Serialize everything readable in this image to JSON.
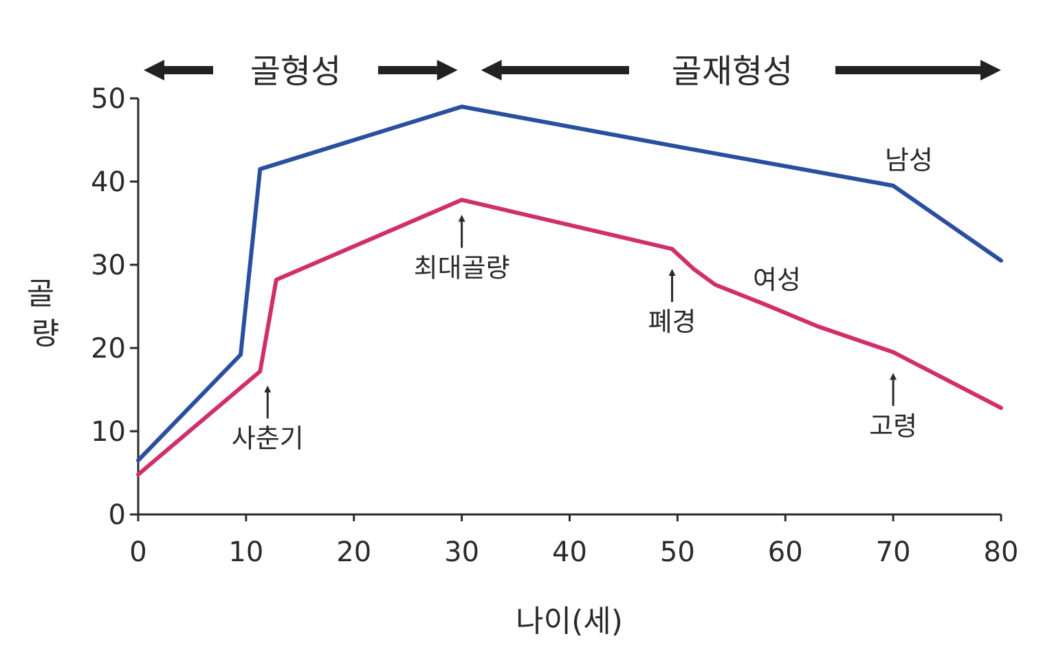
{
  "chart_data": {
    "type": "line",
    "xlabel": "나이(세)",
    "ylabel": "골량",
    "xlim": [
      0,
      80
    ],
    "ylim": [
      0,
      50
    ],
    "x_ticks": [
      "0",
      "10",
      "20",
      "30",
      "40",
      "50",
      "60",
      "70",
      "80"
    ],
    "y_ticks": [
      "0",
      "10",
      "20",
      "30",
      "40",
      "50"
    ],
    "grid": false,
    "series": [
      {
        "name": "남성",
        "color": "#2a4f9e",
        "points": [
          [
            0,
            6.5
          ],
          [
            9.5,
            19.2
          ],
          [
            11.3,
            41.5
          ],
          [
            30,
            49
          ],
          [
            50,
            44.2
          ],
          [
            70,
            39.5
          ],
          [
            80,
            30.5
          ]
        ]
      },
      {
        "name": "여성",
        "color": "#d0306a",
        "points": [
          [
            0,
            4.8
          ],
          [
            11.3,
            17.2
          ],
          [
            12.8,
            28.2
          ],
          [
            30,
            37.8
          ],
          [
            49.5,
            31.9
          ],
          [
            51.5,
            29.5
          ],
          [
            53.5,
            27.6
          ],
          [
            58,
            25.3
          ],
          [
            63,
            22.6
          ],
          [
            70,
            19.5
          ],
          [
            80,
            12.8
          ]
        ]
      }
    ],
    "phases": [
      {
        "label": "골형성",
        "from": 0,
        "to": 30
      },
      {
        "label": "골재형성",
        "from": 30,
        "to": 80
      }
    ],
    "annotations": [
      {
        "label": "사춘기",
        "x": 12,
        "y": 15.5
      },
      {
        "label": "최대골량",
        "x": 30,
        "y": 36
      },
      {
        "label": "폐경",
        "x": 49.5,
        "y": 29.5
      },
      {
        "label": "고령",
        "x": 70,
        "y": 17
      }
    ]
  }
}
